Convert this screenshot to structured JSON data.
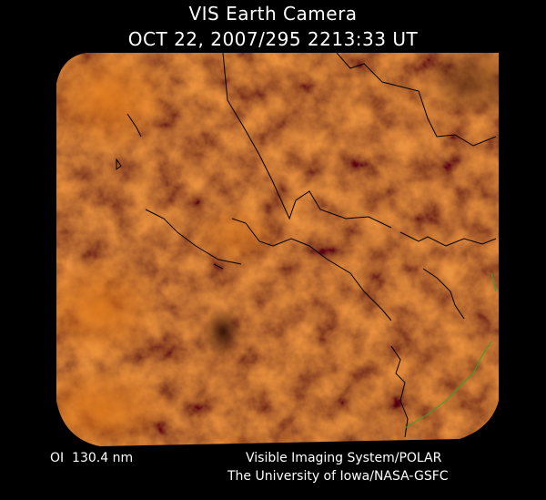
{
  "header": {
    "title": "VIS Earth Camera",
    "timestamp": "OCT 22, 2007/295 2213:33 UT"
  },
  "footer": {
    "wavelength": "OI  130.4 nm",
    "instrument": "Visible Imaging System/POLAR",
    "credit": "The University of Iowa/NASA-GSFC"
  }
}
